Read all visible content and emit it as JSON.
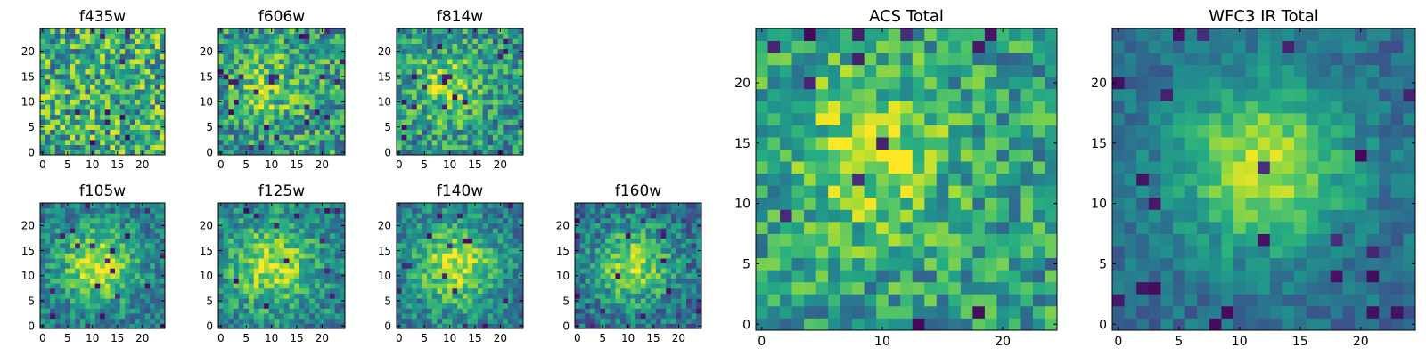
{
  "colors": {
    "colormap": "viridis",
    "background": "#ffffff",
    "frame": "#000000"
  },
  "chart_data": [
    {
      "type": "heatmap",
      "title": "f435w",
      "xlim": [
        0,
        24
      ],
      "ylim": [
        0,
        24
      ],
      "xticks": [
        "0",
        "5",
        "10",
        "15",
        "20"
      ],
      "yticks": [
        "0",
        "5",
        "10",
        "15",
        "20"
      ],
      "grid": false,
      "peak": [
        null,
        null
      ],
      "spread": 0,
      "amp": 0,
      "noise": 0.35,
      "base": 0.62,
      "dips": 0.02,
      "seed": 11
    },
    {
      "type": "heatmap",
      "title": "f606w",
      "xlim": [
        0,
        24
      ],
      "ylim": [
        0,
        24
      ],
      "xticks": [
        "0",
        "5",
        "10",
        "15",
        "20"
      ],
      "yticks": [
        "0",
        "5",
        "10",
        "15",
        "20"
      ],
      "grid": false,
      "peak": [
        9,
        13
      ],
      "spread": 4.5,
      "amp": 0.25,
      "noise": 0.3,
      "base": 0.55,
      "dips": 0.03,
      "seed": 23
    },
    {
      "type": "heatmap",
      "title": "f814w",
      "xlim": [
        0,
        24
      ],
      "ylim": [
        0,
        24
      ],
      "xticks": [
        "0",
        "5",
        "10",
        "15",
        "20"
      ],
      "yticks": [
        "0",
        "5",
        "10",
        "15",
        "20"
      ],
      "grid": false,
      "peak": [
        9,
        13
      ],
      "spread": 4.5,
      "amp": 0.3,
      "noise": 0.28,
      "base": 0.52,
      "dips": 0.03,
      "seed": 37
    },
    {
      "type": "heatmap",
      "title": "f105w",
      "xlim": [
        0,
        24
      ],
      "ylim": [
        0,
        24
      ],
      "xticks": [
        "0",
        "5",
        "10",
        "15",
        "20"
      ],
      "yticks": [
        "0",
        "5",
        "10",
        "15",
        "20"
      ],
      "grid": false,
      "peak": [
        11,
        12
      ],
      "spread": 5.5,
      "amp": 0.5,
      "noise": 0.2,
      "base": 0.4,
      "dips": 0.03,
      "seed": 41
    },
    {
      "type": "heatmap",
      "title": "f125w",
      "xlim": [
        0,
        24
      ],
      "ylim": [
        0,
        24
      ],
      "xticks": [
        "0",
        "5",
        "10",
        "15",
        "20"
      ],
      "yticks": [
        "0",
        "5",
        "10",
        "15",
        "20"
      ],
      "grid": false,
      "peak": [
        10,
        12
      ],
      "spread": 5.5,
      "amp": 0.45,
      "noise": 0.22,
      "base": 0.45,
      "dips": 0.02,
      "seed": 53
    },
    {
      "type": "heatmap",
      "title": "f140w",
      "xlim": [
        0,
        24
      ],
      "ylim": [
        0,
        24
      ],
      "xticks": [
        "0",
        "5",
        "10",
        "15",
        "20"
      ],
      "yticks": [
        "0",
        "5",
        "10",
        "15",
        "20"
      ],
      "grid": false,
      "peak": [
        11,
        12
      ],
      "spread": 5.5,
      "amp": 0.5,
      "noise": 0.2,
      "base": 0.42,
      "dips": 0.02,
      "seed": 67
    },
    {
      "type": "heatmap",
      "title": "f160w",
      "xlim": [
        0,
        24
      ],
      "ylim": [
        0,
        24
      ],
      "xticks": [
        "0",
        "5",
        "10",
        "15",
        "20"
      ],
      "yticks": [
        "0",
        "5",
        "10",
        "15",
        "20"
      ],
      "grid": false,
      "peak": [
        11,
        12
      ],
      "spread": 5,
      "amp": 0.5,
      "noise": 0.22,
      "base": 0.38,
      "dips": 0.03,
      "seed": 79
    },
    {
      "type": "heatmap",
      "title": "ACS Total",
      "xlim": [
        0,
        24
      ],
      "ylim": [
        0,
        24
      ],
      "xticks": [
        "0",
        "10",
        "20"
      ],
      "yticks": [
        "0",
        "5",
        "10",
        "15",
        "20"
      ],
      "grid": false,
      "peak": [
        9,
        14
      ],
      "spread": 5,
      "amp": 0.3,
      "noise": 0.25,
      "base": 0.55,
      "dips": 0.03,
      "seed": 97
    },
    {
      "type": "heatmap",
      "title": "WFC3 IR Total",
      "xlim": [
        0,
        24
      ],
      "ylim": [
        0,
        24
      ],
      "xticks": [
        "0",
        "5",
        "10",
        "15",
        "20"
      ],
      "yticks": [
        "0",
        "5",
        "10",
        "15",
        "20"
      ],
      "grid": false,
      "peak": [
        12,
        13
      ],
      "spread": 5,
      "amp": 0.55,
      "noise": 0.12,
      "base": 0.35,
      "dips": 0.04,
      "seed": 113
    }
  ]
}
